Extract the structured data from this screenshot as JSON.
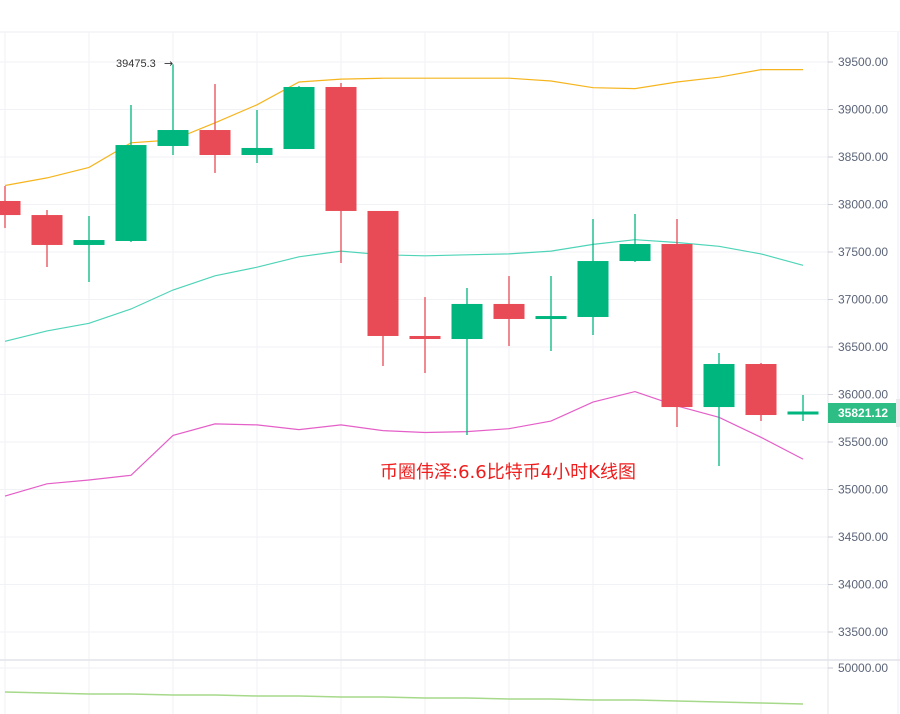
{
  "chart_data": {
    "type": "candlestick",
    "title": "币圈伟泽:6.6比特币4小时K线图",
    "xlabel": "",
    "ylabel": "",
    "ylim": [
      33250,
      39800
    ],
    "grid": true,
    "y_ticks": [
      "39500.00",
      "39000.00",
      "38500.00",
      "38000.00",
      "37500.00",
      "37000.00",
      "36500.00",
      "36000.00",
      "35500.00",
      "35000.00",
      "34500.00",
      "34000.00",
      "33500.00"
    ],
    "sub_pane_tick": "50000.00",
    "last_price": "35821.12",
    "high_marker": "39475.3",
    "colors": {
      "up": "#00b67f",
      "down": "#e84b55",
      "upper_band": "#f6b51e",
      "middle_band": "#4fd4b8",
      "lower_band": "#e45fc8",
      "sub_line": "#a6d98a",
      "last_price_tag": "#2ebd85",
      "watermark": "#ee1c1c"
    },
    "candles": [
      {
        "open": 38037,
        "high": 38195,
        "low": 37752,
        "close": 37889
      },
      {
        "open": 37889,
        "high": 37942,
        "low": 37342,
        "close": 37574
      },
      {
        "open": 37574,
        "high": 37879,
        "low": 37184,
        "close": 37626
      },
      {
        "open": 37616,
        "high": 39047,
        "low": 37605,
        "close": 38626
      },
      {
        "open": 38616,
        "high": 39475,
        "low": 38521,
        "close": 38784
      },
      {
        "open": 38784,
        "high": 39268,
        "low": 38332,
        "close": 38521
      },
      {
        "open": 38521,
        "high": 38995,
        "low": 38437,
        "close": 38595
      },
      {
        "open": 38584,
        "high": 39247,
        "low": 38584,
        "close": 39237
      },
      {
        "open": 39237,
        "high": 39279,
        "low": 37384,
        "close": 37932
      },
      {
        "open": 37932,
        "high": 37932,
        "low": 36300,
        "close": 36616
      },
      {
        "open": 36616,
        "high": 37026,
        "low": 36226,
        "close": 36584
      },
      {
        "open": 36584,
        "high": 37121,
        "low": 35574,
        "close": 36953
      },
      {
        "open": 36953,
        "high": 37247,
        "low": 36510,
        "close": 36795
      },
      {
        "open": 36795,
        "high": 37247,
        "low": 36458,
        "close": 36826
      },
      {
        "open": 36816,
        "high": 37847,
        "low": 36626,
        "close": 37405
      },
      {
        "open": 37405,
        "high": 37900,
        "low": 37395,
        "close": 37584
      },
      {
        "open": 37584,
        "high": 37847,
        "low": 35658,
        "close": 35868
      },
      {
        "open": 35868,
        "high": 36437,
        "low": 35247,
        "close": 36321
      },
      {
        "open": 36321,
        "high": 36332,
        "low": 35721,
        "close": 35784
      },
      {
        "open": 35795,
        "high": 35995,
        "low": 35721,
        "close": 35821
      }
    ],
    "series": [
      {
        "name": "upper_band",
        "values": [
          38200,
          38280,
          38390,
          38650,
          38680,
          38860,
          39050,
          39290,
          39320,
          39330,
          39330,
          39330,
          39330,
          39300,
          39230,
          39220,
          39290,
          39340,
          39420,
          39420
        ]
      },
      {
        "name": "middle_band",
        "values": [
          36560,
          36670,
          36750,
          36900,
          37100,
          37250,
          37340,
          37450,
          37510,
          37470,
          37460,
          37470,
          37480,
          37510,
          37580,
          37630,
          37600,
          37560,
          37480,
          37360
        ]
      },
      {
        "name": "lower_band",
        "values": [
          34930,
          35060,
          35100,
          35150,
          35570,
          35690,
          35680,
          35630,
          35680,
          35620,
          35600,
          35610,
          35640,
          35720,
          35920,
          36030,
          35880,
          35760,
          35550,
          35320
        ]
      },
      {
        "name": "sub_indicator",
        "values": [
          0.27,
          0.28,
          0.29,
          0.29,
          0.3,
          0.3,
          0.31,
          0.31,
          0.32,
          0.32,
          0.33,
          0.33,
          0.34,
          0.34,
          0.35,
          0.35,
          0.36,
          0.37,
          0.38,
          0.39
        ]
      }
    ]
  }
}
